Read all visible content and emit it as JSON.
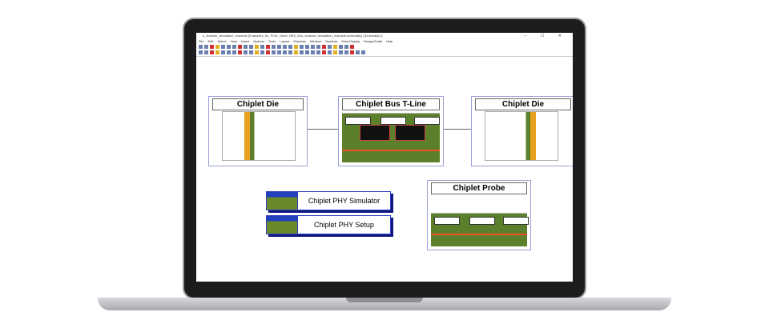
{
  "window": {
    "title": "s_channel_simulation_example [Examples_for_PCIe_Gen6_NRZ_Bus_channel_simulation_example:schematic] (Schematic):1",
    "controls": "– ☐ ✕"
  },
  "menu": [
    "File",
    "Edit",
    "Select",
    "View",
    "Insert",
    "Options",
    "Tools",
    "Layout",
    "Simulate",
    "Window",
    "Symbols",
    "Data Display",
    "DesignGuide",
    "Help"
  ],
  "blocks": {
    "die_left": "Chiplet Die",
    "bus": "Chiplet Bus T-Line",
    "die_right": "Chiplet Die",
    "probe": "Chiplet Probe"
  },
  "buttons": {
    "simulator": "Chiplet PHY Simulator",
    "setup": "Chiplet PHY Setup"
  },
  "colors": {
    "accent": "#3040c0",
    "pcb": "#5b7f2a",
    "trace": "#f05020"
  }
}
